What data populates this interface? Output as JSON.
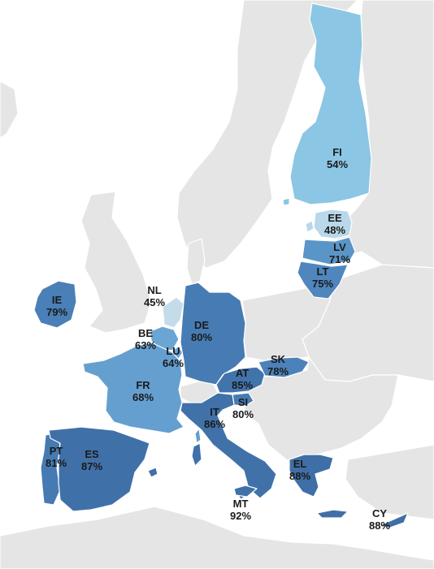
{
  "map": {
    "colors": {
      "sea": "#ffffff",
      "non_euro_land": "#e5e5e5",
      "borders": "#ffffff",
      "scale_light": "#c4dcea",
      "scale_dark": "#3f6fa4"
    },
    "countries": [
      {
        "code": "FI",
        "value": "54%",
        "pct": 54,
        "color": "#8bc6e4"
      },
      {
        "code": "EE",
        "value": "48%",
        "pct": 48,
        "color": "#b9d8ea"
      },
      {
        "code": "LV",
        "value": "71%",
        "pct": 71,
        "color": "#5a95c8"
      },
      {
        "code": "LT",
        "value": "75%",
        "pct": 75,
        "color": "#4f86bd"
      },
      {
        "code": "IE",
        "value": "79%",
        "pct": 79,
        "color": "#4a7fb7"
      },
      {
        "code": "NL",
        "value": "45%",
        "pct": 45,
        "color": "#c4dcea"
      },
      {
        "code": "DE",
        "value": "80%",
        "pct": 80,
        "color": "#477bb3"
      },
      {
        "code": "BE",
        "value": "63%",
        "pct": 63,
        "color": "#6aa5d4"
      },
      {
        "code": "LU",
        "value": "64%",
        "pct": 64,
        "color": "#6aa5d4"
      },
      {
        "code": "SK",
        "value": "78%",
        "pct": 78,
        "color": "#4c81b9"
      },
      {
        "code": "AT",
        "value": "85%",
        "pct": 85,
        "color": "#4274ac"
      },
      {
        "code": "FR",
        "value": "68%",
        "pct": 68,
        "color": "#649fd0"
      },
      {
        "code": "SI",
        "value": "80%",
        "pct": 80,
        "color": "#477bb3"
      },
      {
        "code": "IT",
        "value": "86%",
        "pct": 86,
        "color": "#4071a9"
      },
      {
        "code": "PT",
        "value": "81%",
        "pct": 81,
        "color": "#467ab2"
      },
      {
        "code": "ES",
        "value": "87%",
        "pct": 87,
        "color": "#4070a8"
      },
      {
        "code": "EL",
        "value": "88%",
        "pct": 88,
        "color": "#3f6fa6"
      },
      {
        "code": "MT",
        "value": "92%",
        "pct": 92,
        "color": "#3c6aa0"
      },
      {
        "code": "CY",
        "value": "88%",
        "pct": 88,
        "color": "#3f6fa6"
      }
    ]
  }
}
